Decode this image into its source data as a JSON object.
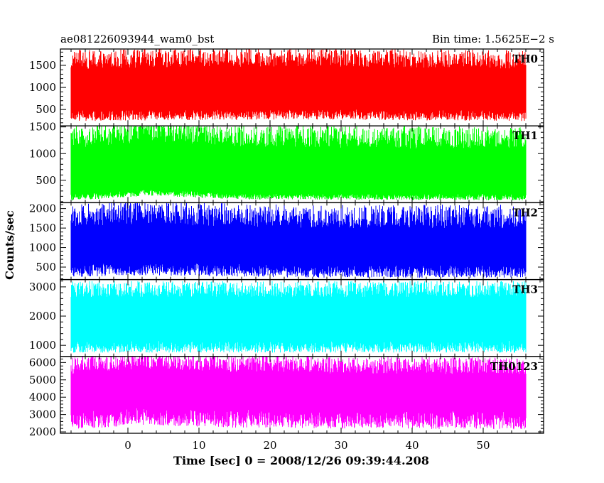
{
  "chart_data": {
    "type": "line",
    "title_left": "ae081226093944_wam0_bst",
    "title_right": "Bin time: 1.5625E−2 s",
    "xlabel": "Time [sec] 0 = 2008/12/26 09:39:44.208",
    "ylabel": "Counts/sec",
    "xlim": [
      -9.5,
      58.5
    ],
    "data_xrange": [
      -8,
      56
    ],
    "x_ticks": [
      0,
      10,
      20,
      30,
      40,
      50
    ],
    "x_tick_labels": [
      "0",
      "10",
      "20",
      "30",
      "40",
      "50"
    ],
    "grid": false,
    "panels": [
      {
        "name": "TH0",
        "color": "#ff0000",
        "ylim": [
          130,
          1870
        ],
        "y_ticks": [
          500,
          1000,
          1500
        ],
        "y_tick_labels": [
          "500",
          "1000",
          "1500"
        ],
        "level": 1000,
        "lower_band": [
          480,
          240
        ],
        "upper_band": [
          1420,
          1850
        ],
        "trend": [
          [
            -8,
            0
          ],
          [
            10,
            40
          ],
          [
            25,
            60
          ],
          [
            40,
            20
          ],
          [
            56,
            0
          ]
        ]
      },
      {
        "name": "TH1",
        "color": "#00ff00",
        "ylim": [
          80,
          1520
        ],
        "y_ticks": [
          500,
          1000,
          1500
        ],
        "y_tick_labels": [
          "500",
          "1000",
          "1500"
        ],
        "level": 700,
        "lower_band": [
          240,
          120
        ],
        "upper_band": [
          1080,
          1500
        ],
        "trend": [
          [
            -8,
            0
          ],
          [
            3,
            150
          ],
          [
            15,
            40
          ],
          [
            56,
            0
          ]
        ]
      },
      {
        "name": "TH2",
        "color": "#0000ff",
        "ylim": [
          180,
          2150
        ],
        "y_ticks": [
          500,
          1000,
          1500,
          2000
        ],
        "y_tick_labels": [
          "500",
          "1000",
          "1500",
          "2000"
        ],
        "level": 1000,
        "lower_band": [
          560,
          230
        ],
        "upper_band": [
          1500,
          2100
        ],
        "trend": [
          [
            -8,
            30
          ],
          [
            2,
            100
          ],
          [
            25,
            0
          ],
          [
            56,
            0
          ]
        ]
      },
      {
        "name": "TH3",
        "color": "#00ffff",
        "ylim": [
          620,
          3250
        ],
        "y_ticks": [
          1000,
          2000,
          3000
        ],
        "y_tick_labels": [
          "1000",
          "2000",
          "3000"
        ],
        "level": 1900,
        "lower_band": [
          1150,
          750
        ],
        "upper_band": [
          2650,
          3200
        ],
        "trend": [
          [
            -8,
            0
          ],
          [
            56,
            0
          ]
        ]
      },
      {
        "name": "TH0123",
        "color": "#ff00ff",
        "ylim": [
          1920,
          6350
        ],
        "y_ticks": [
          2000,
          3000,
          4000,
          5000,
          6000
        ],
        "y_tick_labels": [
          "2000",
          "3000",
          "4000",
          "5000",
          "6000"
        ],
        "level": 4300,
        "lower_band": [
          3200,
          2150
        ],
        "upper_band": [
          5300,
          6300
        ],
        "trend": [
          [
            -8,
            0
          ],
          [
            2,
            350
          ],
          [
            15,
            150
          ],
          [
            30,
            50
          ],
          [
            56,
            0
          ]
        ]
      }
    ]
  }
}
